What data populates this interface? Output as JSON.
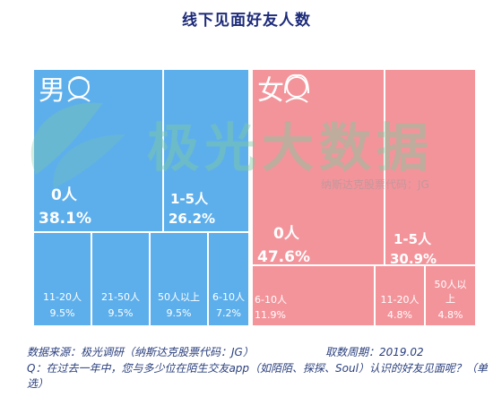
{
  "title": "线下见面好友人数",
  "watermark": {
    "main_text": "极光大数据",
    "sub_text": "纳斯达克股票代码：JG"
  },
  "colors": {
    "male": "#5dafec",
    "female": "#f3949b",
    "cell_border": "#ffffff",
    "title": "#1c2a7a",
    "footer": "#2a3f7d"
  },
  "chart_data": {
    "type": "treemap",
    "title": "线下见面好友人数",
    "groups": [
      {
        "name": "男",
        "icon": "male-avatar-icon",
        "items": [
          {
            "label": "0人",
            "value": 38.1,
            "display": "38.1%"
          },
          {
            "label": "1-5人",
            "value": 26.2,
            "display": "26.2%"
          },
          {
            "label": "11-20人",
            "value": 9.5,
            "display": "9.5%"
          },
          {
            "label": "21-50人",
            "value": 9.5,
            "display": "9.5%"
          },
          {
            "label": "50人以上",
            "value": 9.5,
            "display": "9.5%"
          },
          {
            "label": "6-10人",
            "value": 7.2,
            "display": "7.2%"
          }
        ]
      },
      {
        "name": "女",
        "icon": "female-avatar-icon",
        "items": [
          {
            "label": "0人",
            "value": 47.6,
            "display": "47.6%"
          },
          {
            "label": "1-5人",
            "value": 30.9,
            "display": "30.9%"
          },
          {
            "label": "6-10人",
            "value": 11.9,
            "display": "11.9%"
          },
          {
            "label": "11-20人",
            "value": 4.8,
            "display": "4.8%"
          },
          {
            "label": "50人以上",
            "value": 4.8,
            "display": "4.8%"
          }
        ]
      }
    ]
  },
  "footer": {
    "source": "数据来源：极光调研（纳斯达克股票代码：JG）",
    "period": "取数周期：2019.02",
    "question": "Q：在过去一年中，您与多少位在陌生交友app（如陌陌、探探、Soul）认识的好友见面呢？（单选）"
  }
}
